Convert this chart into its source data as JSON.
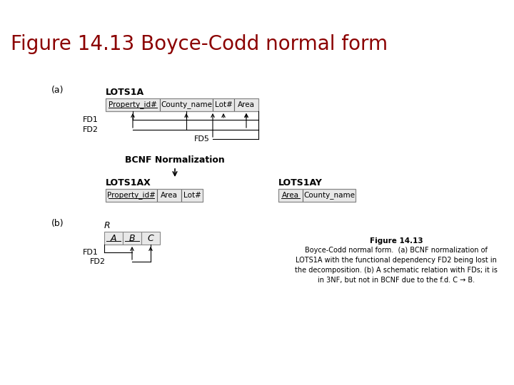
{
  "title": "Figure 14.13 Boyce-Codd normal form",
  "title_color": "#8B0000",
  "title_fontsize": 20,
  "bg_color": "#FFFFFF",
  "caption_bold": "Figure 14.13",
  "caption_text": "Boyce-Codd normal form.  (a) BCNF normalization of\nLOTS1A with the functional dependency FD2 being lost in\nthe decomposition. (b) A schematic relation with FDs; it is\nin 3NF, but not in BCNF due to the f.d. C → B.",
  "label_a": "(a)",
  "label_b": "(b)",
  "lots1a_label": "LOTS1A",
  "lots1a_cols": [
    "Property_id#",
    "County_name",
    "Lot#",
    "Area"
  ],
  "lots1ax_label": "LOTS1AX",
  "lots1ax_cols": [
    "Property_id#",
    "Area",
    "Lot#"
  ],
  "lots1ay_label": "LOTS1AY",
  "lots1ay_cols": [
    "Area",
    "County_name"
  ],
  "bcnf_label": "BCNF Normalization",
  "fd1_label": "FD1",
  "fd2_label": "FD2",
  "fd5_label": "FD5",
  "r_label": "R",
  "r_cols": [
    "A",
    "B",
    "C"
  ],
  "r_fd1_label": "FD1",
  "r_fd2_label": "FD2"
}
